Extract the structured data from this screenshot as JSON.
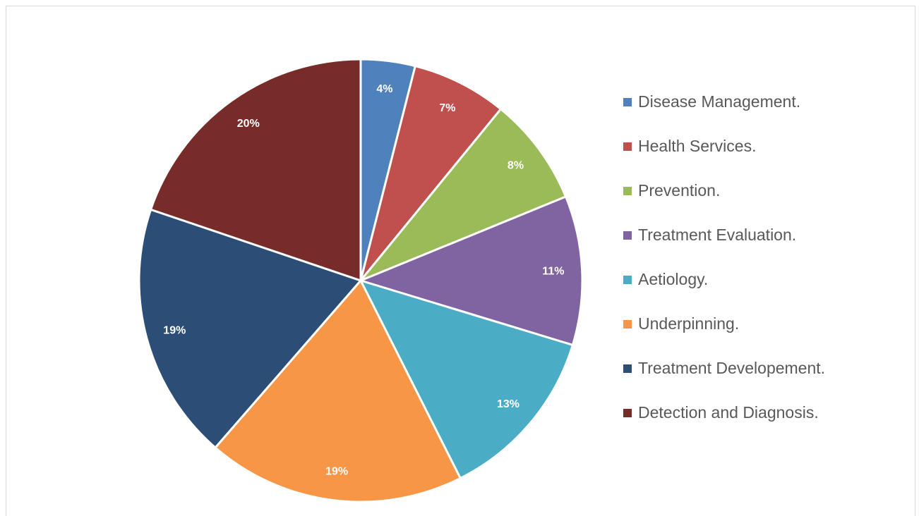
{
  "chart_data": {
    "type": "pie",
    "categories": [
      "Disease Management.",
      "Health Services.",
      "Prevention.",
      "Treatment Evaluation.",
      "Aetiology.",
      "Underpinning.",
      "Treatment Developement.",
      "Detection and Diagnosis."
    ],
    "values": [
      4,
      7,
      8,
      11,
      13,
      19,
      19,
      20
    ],
    "value_labels": [
      "4%",
      "7%",
      "8%",
      "11%",
      "13%",
      "19%",
      "19%",
      "20%"
    ],
    "colors": [
      "#4f81bd",
      "#c0504d",
      "#9bbb59",
      "#8064a2",
      "#4bacc6",
      "#f79646",
      "#2c4d75",
      "#772c2a"
    ],
    "legend": "right"
  }
}
